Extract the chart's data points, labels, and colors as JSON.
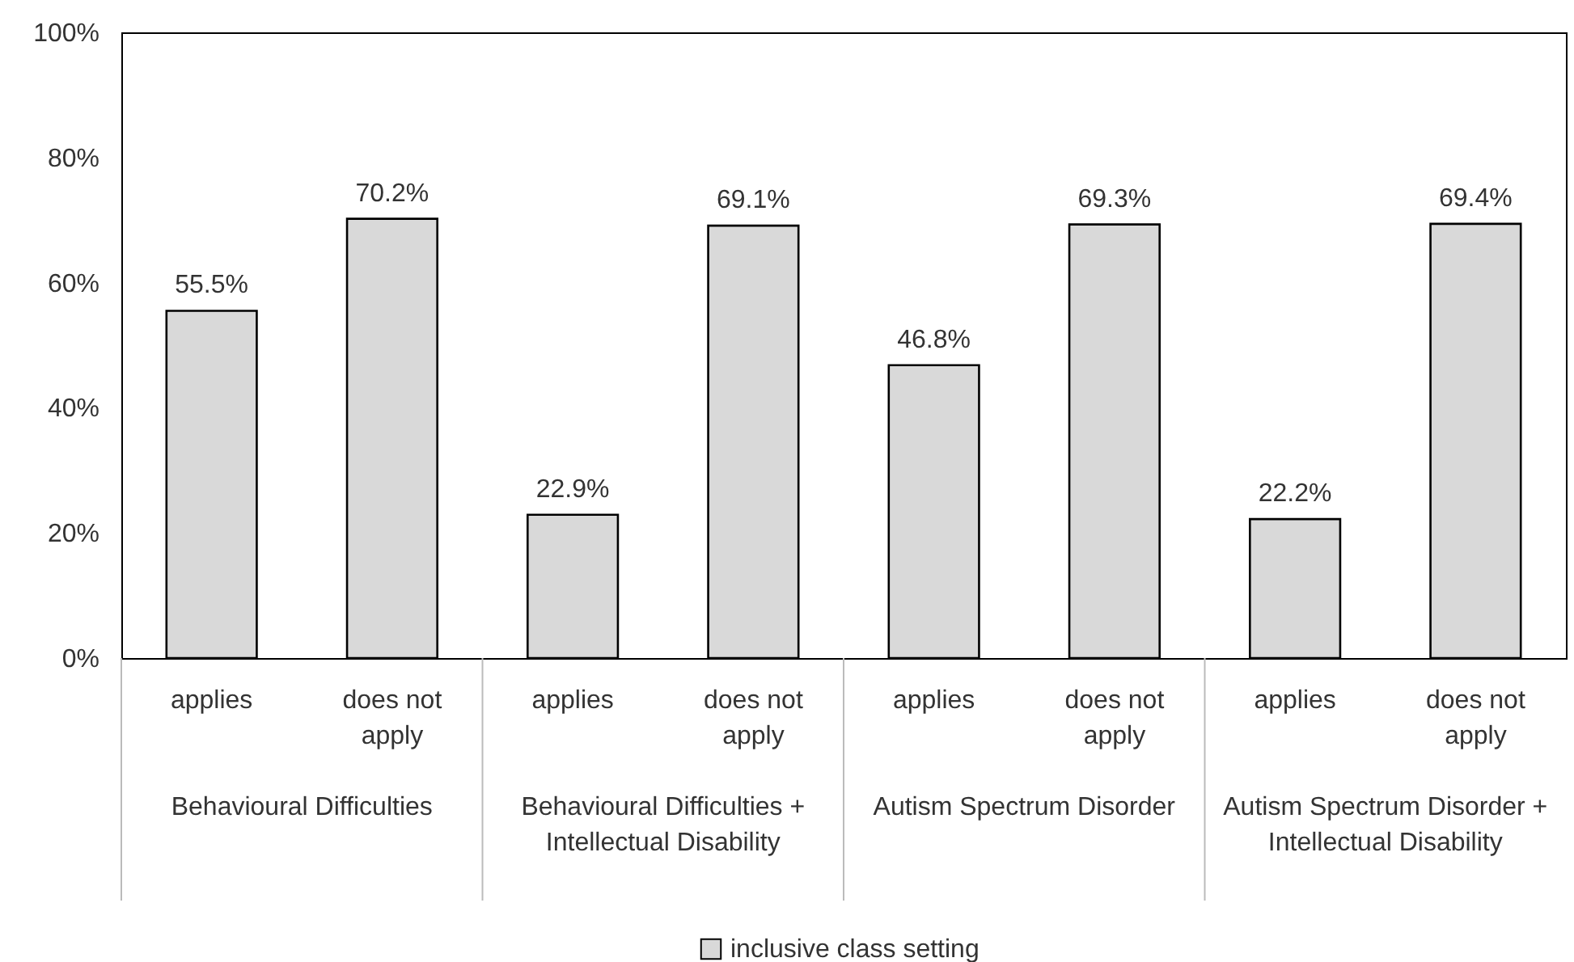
{
  "chart_data": {
    "type": "bar",
    "categories": [
      "applies",
      "does not apply",
      "applies",
      "does not apply",
      "applies",
      "does not apply",
      "applies",
      "does not apply"
    ],
    "series": [
      {
        "name": "inclusive class setting",
        "color": "#d9d9d9",
        "values": [
          55.5,
          70.2,
          22.9,
          69.1,
          46.8,
          69.3,
          22.2,
          69.4
        ],
        "value_labels": [
          "55.5%",
          "70.2%",
          "22.9%",
          "69.1%",
          "46.8%",
          "69.3%",
          "22.2%",
          "69.4%"
        ]
      }
    ],
    "annotations": [
      "Behavioural Difficulties",
      "Behavioural Difficulties + Intellectual Disability",
      "Autism Spectrum Disorder",
      "Autism Spectrum Disorder + Intellectual Disability"
    ],
    "ylim": [
      0,
      100
    ],
    "yticks": [
      {
        "value": 0,
        "label": "0%"
      },
      {
        "value": 20,
        "label": "20%"
      },
      {
        "value": 40,
        "label": "40%"
      },
      {
        "value": 60,
        "label": "60%"
      },
      {
        "value": 80,
        "label": "80%"
      },
      {
        "value": 100,
        "label": "100%"
      }
    ],
    "grid": false,
    "legend": "bottom"
  }
}
